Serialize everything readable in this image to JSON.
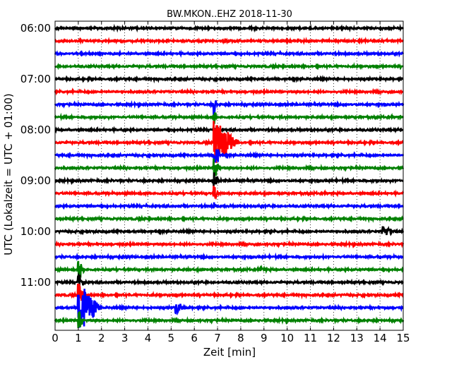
{
  "chart_data": {
    "type": "line",
    "title": "BW.MKON..EHZ 2018-11-30",
    "xlabel": "Zeit  [min]",
    "ylabel": "UTC (Lokalzeit = UTC + 01:00)",
    "xlim": [
      0,
      15
    ],
    "x_ticks": [
      "0",
      "1",
      "2",
      "3",
      "4",
      "5",
      "6",
      "7",
      "8",
      "9",
      "10",
      "11",
      "12",
      "13",
      "14",
      "15"
    ],
    "y_ticks": [
      {
        "label": "06:00",
        "trace": 0
      },
      {
        "label": "07:00",
        "trace": 4
      },
      {
        "label": "08:00",
        "trace": 8
      },
      {
        "label": "09:00",
        "trace": 12
      },
      {
        "label": "10:00",
        "trace": 16
      },
      {
        "label": "11:00",
        "trace": 20
      }
    ],
    "grid": "vertical dotted lines at each minute",
    "trace_colors": [
      "#000000",
      "#ff0000",
      "#0000ff",
      "#008000"
    ],
    "trace_interval_min": 15,
    "start_time": "06:00",
    "trace_count": 24,
    "events": [
      {
        "trace": 2,
        "x": 2.5,
        "amp": 0.12,
        "dur": 0.5
      },
      {
        "trace": 8,
        "x": 2.95,
        "amp": 0.2,
        "dur": 0.25
      },
      {
        "trace": 6,
        "x": 6.85,
        "amp": 1.8,
        "dur": 0.15
      },
      {
        "trace": 7,
        "x": 6.85,
        "amp": 1.0,
        "dur": 0.15
      },
      {
        "trace": 8,
        "x": 6.85,
        "amp": 0.6,
        "dur": 0.4
      },
      {
        "trace": 9,
        "x": 6.85,
        "amp": 3.8,
        "dur": 1.1
      },
      {
        "trace": 10,
        "x": 6.85,
        "amp": 2.5,
        "dur": 0.3
      },
      {
        "trace": 11,
        "x": 6.85,
        "amp": 1.8,
        "dur": 0.3
      },
      {
        "trace": 12,
        "x": 6.85,
        "amp": 1.5,
        "dur": 0.2
      },
      {
        "trace": 13,
        "x": 6.85,
        "amp": 1.2,
        "dur": 0.2
      },
      {
        "trace": 14,
        "x": 6.85,
        "amp": 0.8,
        "dur": 0.1
      },
      {
        "trace": 15,
        "x": 0.75,
        "amp": 0.15,
        "dur": 0.6
      },
      {
        "trace": 16,
        "x": 14.1,
        "amp": 1.0,
        "dur": 0.6
      },
      {
        "trace": 19,
        "x": 8.85,
        "amp": 0.35,
        "dur": 0.5
      },
      {
        "trace": 19,
        "x": 1.0,
        "amp": 1.5,
        "dur": 0.3
      },
      {
        "trace": 20,
        "x": 1.0,
        "amp": 1.5,
        "dur": 0.3
      },
      {
        "trace": 21,
        "x": 1.0,
        "amp": 2.0,
        "dur": 0.3
      },
      {
        "trace": 22,
        "x": 1.0,
        "amp": 4.2,
        "dur": 1.0
      },
      {
        "trace": 23,
        "x": 1.0,
        "amp": 1.5,
        "dur": 0.3
      },
      {
        "trace": 22,
        "x": 5.2,
        "amp": 1.0,
        "dur": 0.5
      }
    ]
  }
}
